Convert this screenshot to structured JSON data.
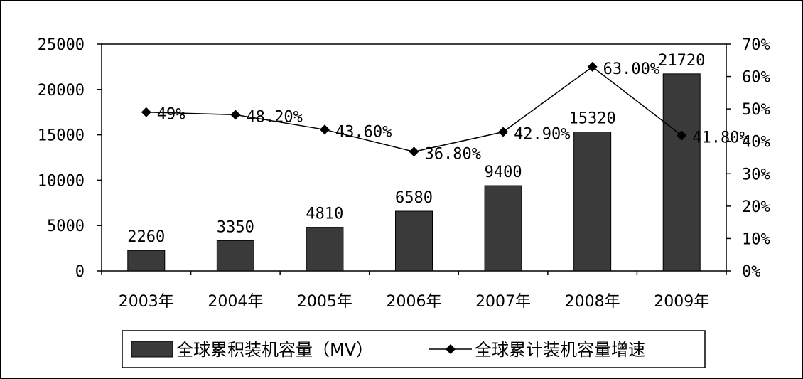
{
  "chart_data": {
    "type": "bar",
    "categories": [
      "2003年",
      "2004年",
      "2005年",
      "2006年",
      "2007年",
      "2008年",
      "2009年"
    ],
    "series": [
      {
        "name": "全球累积装机容量（MV）",
        "type": "bar",
        "axis": "left",
        "values": [
          2260,
          3350,
          4810,
          6580,
          9400,
          15320,
          21720
        ],
        "labels": [
          "2260",
          "3350",
          "4810",
          "6580",
          "9400",
          "15320",
          "21720"
        ],
        "color": "#3a3a3a"
      },
      {
        "name": "全球累计装机容量增速",
        "type": "line",
        "axis": "right",
        "values": [
          49,
          48.2,
          43.6,
          36.8,
          42.9,
          63.0,
          41.8
        ],
        "labels": [
          "49%",
          "48.20%",
          "43.60%",
          "36.80%",
          "42.90%",
          "63.00%",
          "41.80%"
        ],
        "color": "#000000",
        "marker": "diamond"
      }
    ],
    "ylim": [
      0,
      25000
    ],
    "yticks": [
      "0",
      "5000",
      "10000",
      "15000",
      "20000",
      "25000"
    ],
    "y2lim": [
      0,
      70
    ],
    "y2ticks": [
      "0%",
      "10%",
      "20%",
      "30%",
      "40%",
      "50%",
      "60%",
      "70%"
    ],
    "legend": {
      "position": "bottom",
      "bar_label": "全球累积装机容量（MV）",
      "line_label": "全球累计装机容量增速"
    },
    "grid": false
  }
}
